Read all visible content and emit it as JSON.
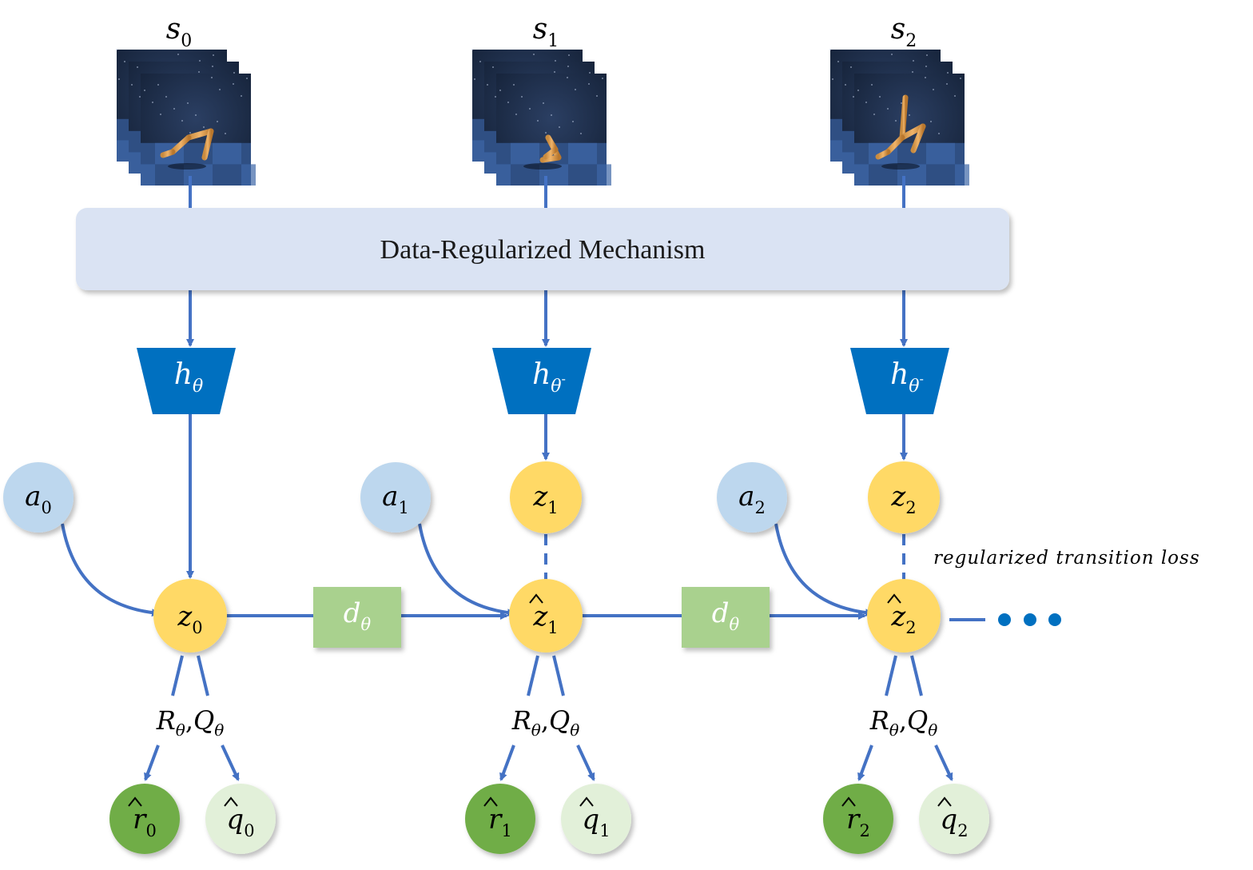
{
  "mechanism": {
    "label": "Data-Regularized Mechanism"
  },
  "steps": [
    {
      "state": {
        "base": "s",
        "sub": "0"
      },
      "encoder": {
        "base": "h",
        "sub": "θ",
        "sup": ""
      },
      "action": {
        "base": "a",
        "sub": "0"
      },
      "target_latent": null,
      "latent": {
        "base": "z",
        "sub": "0",
        "hat": false
      },
      "heads": {
        "r": "R",
        "r_sub": "θ",
        "sep": ",",
        "q": "Q",
        "q_sub": "θ"
      },
      "reward": {
        "base": "r",
        "sub": "0"
      },
      "value": {
        "base": "q",
        "sub": "0"
      }
    },
    {
      "state": {
        "base": "s",
        "sub": "1"
      },
      "encoder": {
        "base": "h",
        "sub": "θ",
        "sup": "-"
      },
      "action": {
        "base": "a",
        "sub": "1"
      },
      "target_latent": {
        "base": "z",
        "sub": "1"
      },
      "latent": {
        "base": "z",
        "sub": "1",
        "hat": true
      },
      "heads": {
        "r": "R",
        "r_sub": "θ",
        "sep": ",",
        "q": "Q",
        "q_sub": "θ"
      },
      "reward": {
        "base": "r",
        "sub": "1"
      },
      "value": {
        "base": "q",
        "sub": "1"
      }
    },
    {
      "state": {
        "base": "s",
        "sub": "2"
      },
      "encoder": {
        "base": "h",
        "sub": "θ",
        "sup": "-"
      },
      "action": {
        "base": "a",
        "sub": "2"
      },
      "target_latent": {
        "base": "z",
        "sub": "2"
      },
      "latent": {
        "base": "z",
        "sub": "2",
        "hat": true
      },
      "heads": {
        "r": "R",
        "r_sub": "θ",
        "sep": ",",
        "q": "Q",
        "q_sub": "θ"
      },
      "reward": {
        "base": "r",
        "sub": "2"
      },
      "value": {
        "base": "q",
        "sub": "2"
      }
    }
  ],
  "dynamics": [
    {
      "base": "d",
      "sub": "θ"
    },
    {
      "base": "d",
      "sub": "θ"
    }
  ],
  "loss_label": "regularized transition loss",
  "colors": {
    "arrow": "#4472C4",
    "mechanism_fill": "#DAE3F3",
    "encoder_fill": "#0070C0",
    "dynamics_fill": "#A9D18E",
    "latent_fill": "#FFD966",
    "action_fill": "#BDD7EE",
    "reward_fill": "#70AD47",
    "value_fill": "#E2F0D9",
    "ellipsis": "#0070C0"
  }
}
